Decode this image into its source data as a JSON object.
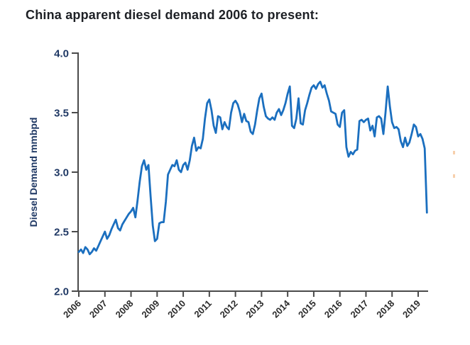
{
  "title": "China apparent diesel demand 2006 to present:",
  "colors": {
    "line": "#1b6fbf",
    "axis": "#4a4a4a",
    "y_tick_label": "#1f3864",
    "x_tick_label": "#2b2b2b",
    "title": "#1d2025",
    "edge_artifact": "#f0a868"
  },
  "chart_data": {
    "type": "line",
    "title": "China apparent diesel demand 2006 to present:",
    "xlabel": "",
    "ylabel": "Diesel Demand mmbpd",
    "ylim": [
      2.0,
      4.0
    ],
    "ytick_labels": [
      "2.0",
      "2.5",
      "3.0",
      "3.5",
      "4.0"
    ],
    "yticks": [
      2.0,
      2.5,
      3.0,
      3.5,
      4.0
    ],
    "xtick_labels": [
      "2006",
      "2007",
      "2008",
      "2009",
      "2010",
      "2011",
      "2012",
      "2013",
      "2014",
      "2015",
      "2016",
      "2017",
      "2018",
      "2019"
    ],
    "grid": false,
    "legend": "none",
    "series": [
      {
        "name": "China apparent diesel demand",
        "unit": "mmbpd",
        "frequency": "monthly",
        "start": "2006-01",
        "end": "2019-05",
        "values": [
          2.33,
          2.35,
          2.32,
          2.37,
          2.35,
          2.31,
          2.33,
          2.36,
          2.34,
          2.38,
          2.42,
          2.46,
          2.5,
          2.44,
          2.47,
          2.52,
          2.56,
          2.6,
          2.53,
          2.51,
          2.56,
          2.59,
          2.62,
          2.65,
          2.67,
          2.7,
          2.62,
          2.76,
          2.92,
          3.05,
          3.1,
          3.02,
          3.06,
          2.8,
          2.55,
          2.42,
          2.44,
          2.57,
          2.58,
          2.58,
          2.75,
          2.98,
          3.02,
          3.06,
          3.05,
          3.1,
          3.02,
          3.0,
          3.06,
          3.08,
          3.02,
          3.1,
          3.22,
          3.29,
          3.18,
          3.21,
          3.2,
          3.28,
          3.45,
          3.58,
          3.61,
          3.52,
          3.39,
          3.33,
          3.47,
          3.46,
          3.36,
          3.42,
          3.38,
          3.36,
          3.5,
          3.58,
          3.6,
          3.57,
          3.51,
          3.42,
          3.49,
          3.43,
          3.42,
          3.34,
          3.32,
          3.4,
          3.52,
          3.62,
          3.66,
          3.55,
          3.47,
          3.45,
          3.44,
          3.46,
          3.44,
          3.5,
          3.53,
          3.48,
          3.52,
          3.58,
          3.66,
          3.72,
          3.39,
          3.37,
          3.45,
          3.62,
          3.41,
          3.4,
          3.52,
          3.58,
          3.65,
          3.71,
          3.73,
          3.7,
          3.74,
          3.76,
          3.71,
          3.73,
          3.66,
          3.6,
          3.51,
          3.5,
          3.49,
          3.4,
          3.38,
          3.5,
          3.52,
          3.21,
          3.13,
          3.17,
          3.15,
          3.18,
          3.19,
          3.43,
          3.44,
          3.42,
          3.44,
          3.45,
          3.35,
          3.39,
          3.3,
          3.46,
          3.47,
          3.45,
          3.32,
          3.5,
          3.72,
          3.55,
          3.42,
          3.37,
          3.38,
          3.36,
          3.26,
          3.21,
          3.29,
          3.22,
          3.25,
          3.32,
          3.4,
          3.38,
          3.3,
          3.32,
          3.28,
          3.2,
          2.66
        ]
      }
    ]
  }
}
